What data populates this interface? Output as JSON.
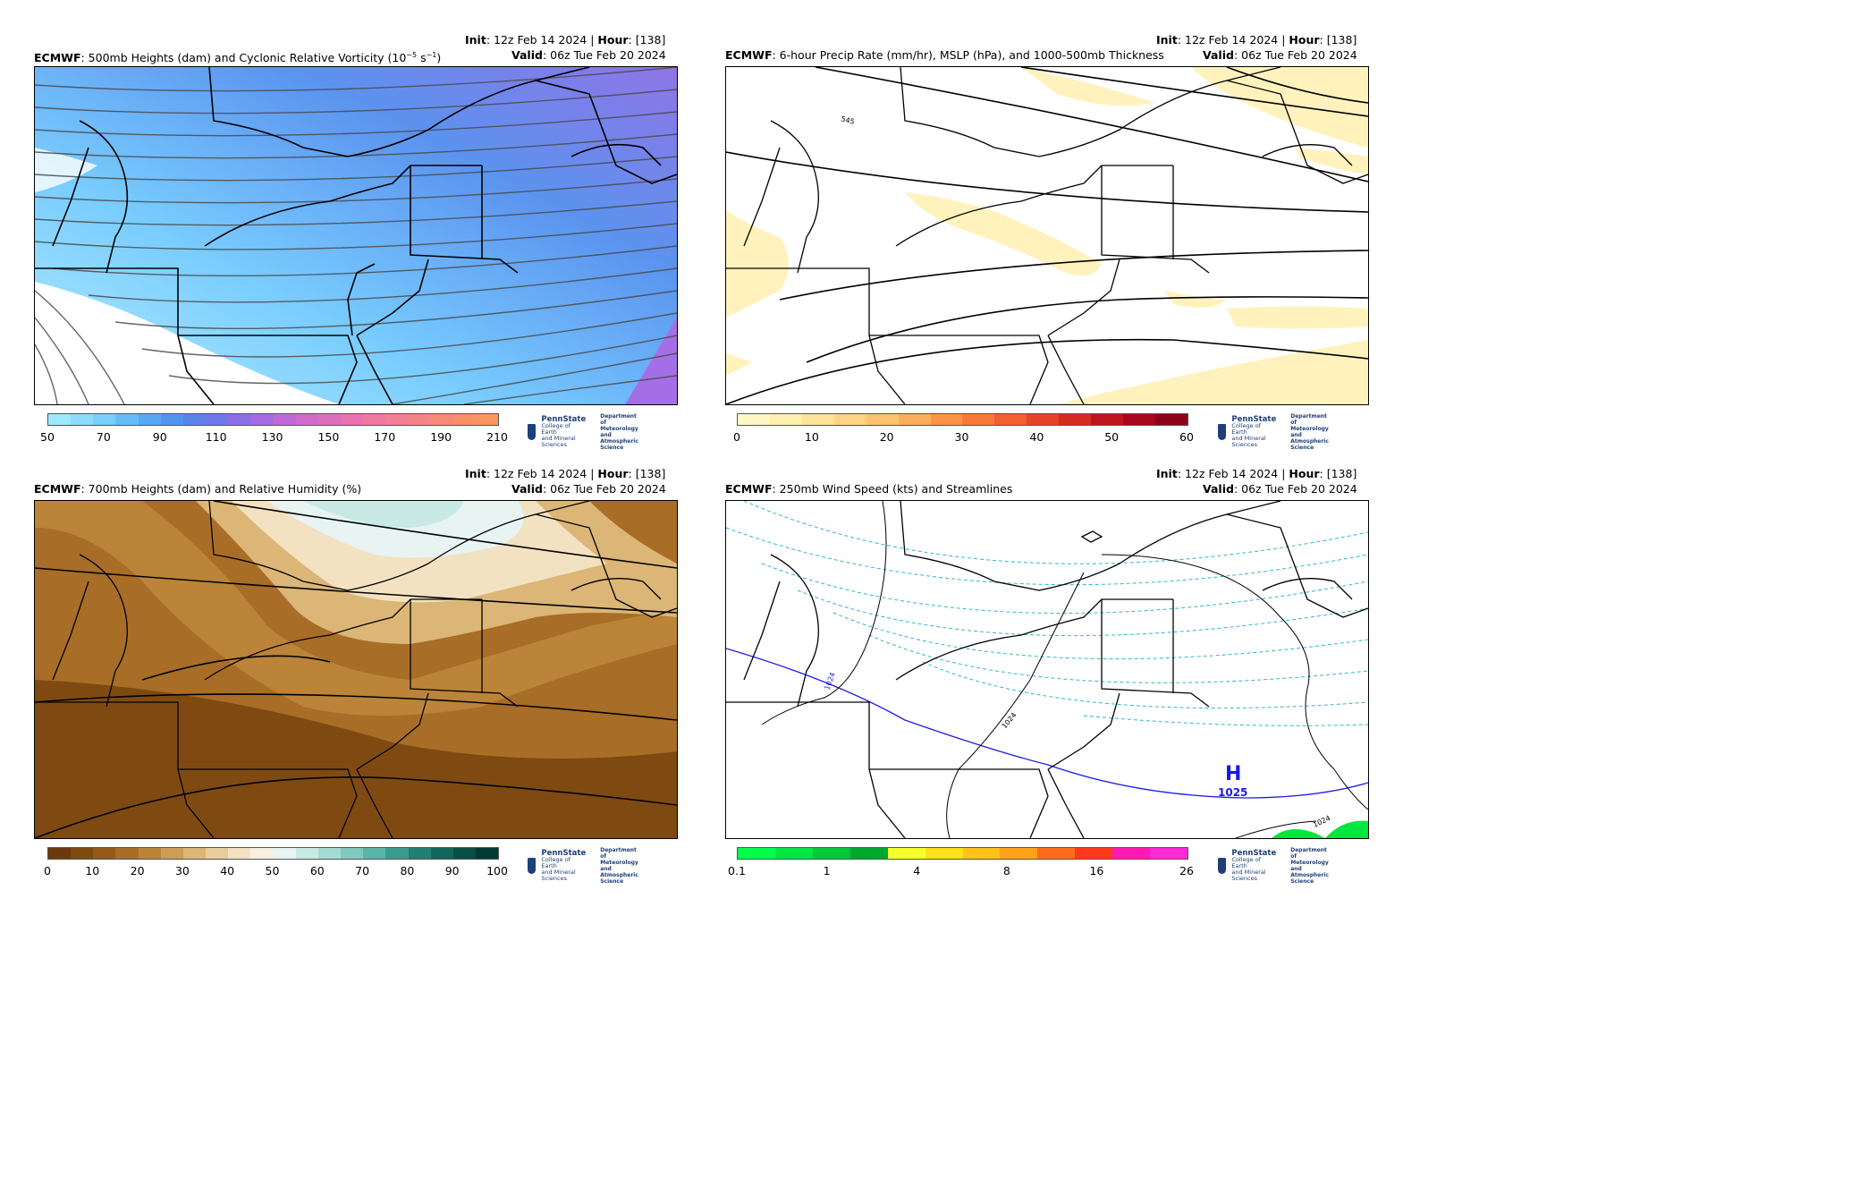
{
  "panels": [
    {
      "id": "vort500",
      "model": "ECMWF",
      "title_rest": ": 500mb Heights (dam) and Cyclonic Relative Vorticity (10",
      "title_exp1": "−5",
      "title_mid": " s",
      "title_exp2": "−1",
      "title_end": ")",
      "init_label": "Init",
      "init_value": ": 12z Feb 14 2024 | ",
      "hour_label": "Hour",
      "hour_value": ": [138]",
      "valid_label": "Valid",
      "valid_value": ": 06z Tue Feb 20 2024",
      "colorbar": {
        "ticks": [
          "50",
          "70",
          "90",
          "110",
          "130",
          "150",
          "170",
          "190",
          "210"
        ],
        "colors": [
          "#9fe8ff",
          "#8cdcff",
          "#79cdff",
          "#66bbfb",
          "#58a8f4",
          "#5395ee",
          "#5b84ea",
          "#6e78e8",
          "#8a6fe6",
          "#a66ae2",
          "#bd6ad8",
          "#cf6ccc",
          "#dd6fbf",
          "#e873b1",
          "#ef78a2",
          "#f27e93",
          "#f58484",
          "#f78a76",
          "#f8906a",
          "#f99660"
        ]
      }
    },
    {
      "id": "precip",
      "model": "ECMWF",
      "title_rest": ": 6-hour Precip Rate (mm/hr), MSLP (hPa), and 1000-500mb Thickness",
      "init_label": "Init",
      "init_value": ": 12z Feb 14 2024 | ",
      "hour_label": "Hour",
      "hour_value": ": [138]",
      "valid_label": "Valid",
      "valid_value": ": 06z Tue Feb 20 2024",
      "contour_label": "545",
      "colorbar": {
        "ticks": [
          "0",
          "10",
          "20",
          "30",
          "40",
          "50",
          "60"
        ],
        "colors": [
          "#fff7c4",
          "#ffefb0",
          "#ffe39a",
          "#fed386",
          "#fdc270",
          "#fcad5c",
          "#fb9448",
          "#f87a3a",
          "#f25f30",
          "#e64228",
          "#d62a22",
          "#c0141d",
          "#a8071c",
          "#8c001a"
        ]
      }
    },
    {
      "id": "rh700",
      "model": "ECMWF",
      "title_rest": ": 700mb Heights (dam) and Relative Humidity (%)",
      "init_label": "Init",
      "init_value": ": 12z Feb 14 2024 | ",
      "hour_label": "Hour",
      "hour_value": ": [138]",
      "valid_label": "Valid",
      "valid_value": ": 06z Tue Feb 20 2024",
      "colorbar": {
        "ticks": [
          "0",
          "10",
          "20",
          "30",
          "40",
          "50",
          "60",
          "70",
          "80",
          "90",
          "100"
        ],
        "colors": [
          "#6a3a0c",
          "#7f4a12",
          "#945a1a",
          "#a86d26",
          "#bb8438",
          "#cc9d54",
          "#dbb676",
          "#e8cd9c",
          "#f3e2c2",
          "#f6efe2",
          "#e8f4f2",
          "#c8e9e4",
          "#a4dbd2",
          "#7fcabd",
          "#5ab5a6",
          "#3a9a8b",
          "#227f72",
          "#12665b",
          "#074f46",
          "#003b33"
        ]
      }
    },
    {
      "id": "wind250",
      "model": "ECMWF",
      "title_rest": ": 250mb Wind Speed (kts) and Streamlines",
      "init_label": "Init",
      "init_value": ": 12z Feb 14 2024 | ",
      "hour_label": "Hour",
      "hour_value": ": [138]",
      "valid_label": "Valid",
      "valid_value": ": 06z Tue Feb 20 2024",
      "contour_labels": [
        "1024",
        "1024",
        "1024"
      ],
      "high_label": "H",
      "high_value": "1025",
      "colorbar": {
        "ticks": [
          "0.1",
          "1",
          "4",
          "8",
          "16",
          "26"
        ],
        "colors": [
          "#00ff4a",
          "#00e640",
          "#00c838",
          "#00a82e",
          "#f5ff2a",
          "#ffe11a",
          "#ffc21a",
          "#ffa21a",
          "#ff6b1a",
          "#ff3a1a",
          "#ff1ab4",
          "#ff2ad8"
        ]
      }
    }
  ],
  "logo": {
    "name": "PennState",
    "college_line1": "College of Earth",
    "college_line2": "and Mineral Sciences",
    "dept_line1": "Department of",
    "dept_line2": "Meteorology and",
    "dept_line3": "Atmospheric Science"
  }
}
